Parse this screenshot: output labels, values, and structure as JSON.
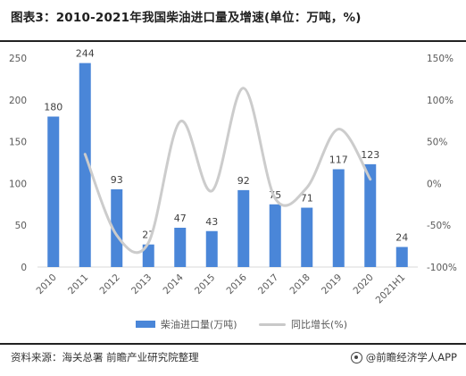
{
  "header": {
    "title": "图表3：2010-2021年我国柴油进口量及增速(单位：万吨，%)"
  },
  "footer": {
    "source": "资料来源：海关总署 前瞻产业研究院整理",
    "brand": "@前瞻经济学人APP"
  },
  "legend": {
    "bar_label": "柴油进口量(万吨)",
    "line_label": "同比增长(%)"
  },
  "colors": {
    "bar": "#4a86d8",
    "line": "#cccccc"
  },
  "chart_data": {
    "type": "bar",
    "categories": [
      "2010",
      "2011",
      "2012",
      "2013",
      "2014",
      "2015",
      "2016",
      "2017",
      "2018",
      "2019",
      "2020",
      "2021H1"
    ],
    "series": [
      {
        "name": "柴油进口量(万吨)",
        "type": "bar",
        "axis": "left",
        "values": [
          180,
          244,
          93,
          27,
          47,
          43,
          92,
          75,
          71,
          117,
          123,
          24
        ]
      },
      {
        "name": "同比增长(%)",
        "type": "line",
        "axis": "right",
        "values": [
          null,
          35,
          -62,
          -71,
          74,
          -9,
          114,
          -18,
          -5,
          65,
          5,
          null
        ]
      }
    ],
    "left_axis": {
      "ylim": [
        0,
        250
      ],
      "ticks": [
        0,
        50,
        100,
        150,
        200,
        250
      ]
    },
    "right_axis": {
      "ylim": [
        -100,
        150
      ],
      "ticks": [
        "-100%",
        "-50%",
        "0%",
        "50%",
        "100%",
        "150%"
      ]
    },
    "data_labels": [
      "180",
      "244",
      "93",
      "27",
      "47",
      "43",
      "92",
      "75",
      "71",
      "117",
      "123",
      "24"
    ],
    "grid": false,
    "legend_position": "bottom"
  }
}
